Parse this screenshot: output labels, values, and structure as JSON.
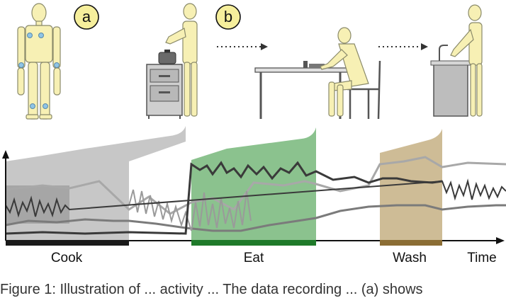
{
  "panels": {
    "a": "a",
    "b": "b"
  },
  "activities": {
    "cook": "Cook",
    "eat": "Eat",
    "wash": "Wash"
  },
  "axis": {
    "x_label": "Time"
  },
  "caption": "Figure 1: Illustration of ... activity ... The data recording ... (a) shows",
  "colors": {
    "figure_skin": "#f7f0b4",
    "figure_outline": "#8a8a6a",
    "sensor": "#8fc4e6",
    "cook_band": "#bdbdbd",
    "cook_bar": "#1a1a1a",
    "eat_band": "#77b77a",
    "eat_bar": "#1f7a2a",
    "wash_band": "#c6b084",
    "wash_bar": "#8b6d34",
    "signal_dark": "#3a3a3a",
    "signal_mid": "#7b7b7b",
    "signal_light": "#a8a8a8"
  },
  "icons": [
    "arrow-right-dotted-icon",
    "stove-icon",
    "table-icon",
    "chair-icon",
    "sink-icon",
    "person-icon"
  ]
}
